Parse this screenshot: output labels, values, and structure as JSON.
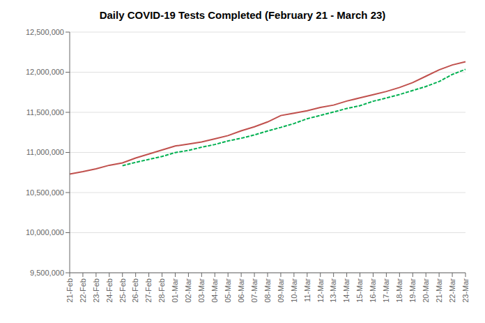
{
  "chart_data": {
    "type": "line",
    "title": "Daily COVID-19 Tests Completed (February 21 - March 23)",
    "categories": [
      "21-Feb",
      "22-Feb",
      "23-Feb",
      "24-Feb",
      "25-Feb",
      "26-Feb",
      "27-Feb",
      "28-Feb",
      "01-Mar",
      "02-Mar",
      "03-Mar",
      "04-Mar",
      "05-Mar",
      "06-Mar",
      "07-Mar",
      "08-Mar",
      "09-Mar",
      "10-Mar",
      "11-Mar",
      "12-Mar",
      "13-Mar",
      "14-Mar",
      "15-Mar",
      "16-Mar",
      "17-Mar",
      "18-Mar",
      "19-Mar",
      "20-Mar",
      "21-Mar",
      "22-Mar",
      "23-Mar"
    ],
    "series": [
      {
        "color": "#c0504d",
        "line_style": "solid",
        "values": [
          10730000,
          10760000,
          10795000,
          10840000,
          10870000,
          10930000,
          10980000,
          11030000,
          11080000,
          11105000,
          11130000,
          11170000,
          11210000,
          11270000,
          11320000,
          11380000,
          11460000,
          11490000,
          11520000,
          11560000,
          11590000,
          11640000,
          11680000,
          11720000,
          11760000,
          11810000,
          11870000,
          11950000,
          12030000,
          12090000,
          12130000
        ]
      },
      {
        "color": "#00b050",
        "line_style": "dashed",
        "values": [
          null,
          null,
          null,
          null,
          10835000,
          10876000,
          10913000,
          10950000,
          10998000,
          11025000,
          11065000,
          11099000,
          11143000,
          11177000,
          11218000,
          11268000,
          11312000,
          11360000,
          11420000,
          11462000,
          11504000,
          11548000,
          11582000,
          11638000,
          11678000,
          11722000,
          11772000,
          11822000,
          11884000,
          11972000,
          12036000
        ]
      }
    ],
    "ylim": [
      9500000,
      12500000
    ],
    "yticks": [
      {
        "value": 9500000,
        "label": "9,500,000"
      },
      {
        "value": 10000000,
        "label": "10,000,000"
      },
      {
        "value": 10500000,
        "label": "10,500,000"
      },
      {
        "value": 11000000,
        "label": "11,000,000"
      },
      {
        "value": 11500000,
        "label": "11,500,000"
      },
      {
        "value": 12000000,
        "label": "12,000,000"
      },
      {
        "value": 12500000,
        "label": "12,500,000"
      }
    ],
    "grid": true
  }
}
